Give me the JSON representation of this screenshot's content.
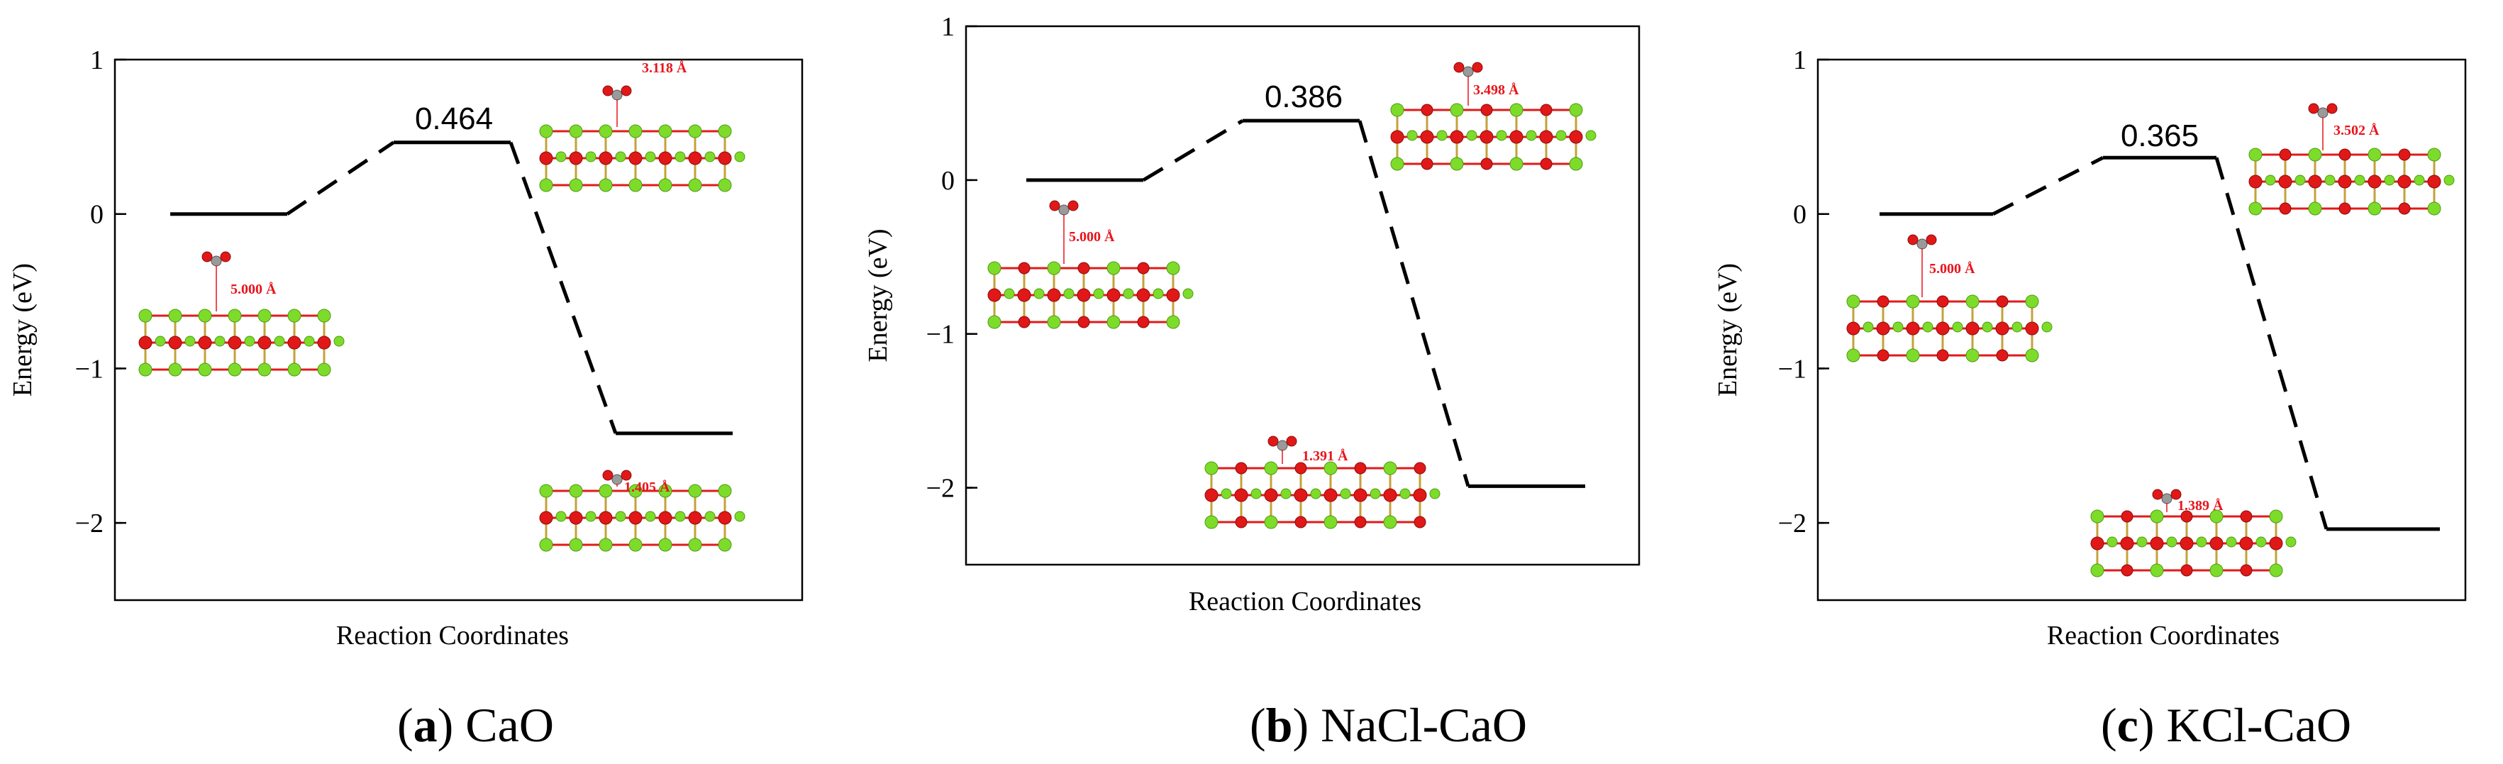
{
  "chart_data": [
    {
      "type": "line",
      "style": "energy-profile",
      "panel_letter": "a",
      "panel_name": "CaO",
      "xlabel": "Reaction Coordinates",
      "ylabel": "Energy (eV)",
      "ylim": [
        -2.5,
        1
      ],
      "yticks": [
        {
          "v": 1,
          "t": "1"
        },
        {
          "v": 0,
          "t": "0"
        },
        {
          "v": -1,
          "t": "−1"
        },
        {
          "v": -2,
          "t": "−2"
        }
      ],
      "levels": [
        0,
        0.464,
        -1.42
      ],
      "barrier_label": "0.464",
      "structures": [
        {
          "label": "5.000 Å",
          "anchor": "initial"
        },
        {
          "label": "3.118 Å",
          "anchor": "transition"
        },
        {
          "label": "1.405 Å",
          "anchor": "final"
        }
      ]
    },
    {
      "type": "line",
      "style": "energy-profile",
      "panel_letter": "b",
      "panel_name": "NaCl-CaO",
      "xlabel": "Reaction Coordinates",
      "ylabel": "Energy (eV)",
      "ylim": [
        -2.5,
        1
      ],
      "yticks": [
        {
          "v": 1,
          "t": "1"
        },
        {
          "v": 0,
          "t": "0"
        },
        {
          "v": -1,
          "t": "−1"
        },
        {
          "v": -2,
          "t": "−2"
        }
      ],
      "levels": [
        0,
        0.386,
        -1.99
      ],
      "barrier_label": "0.386",
      "structures": [
        {
          "label": "5.000 Å",
          "anchor": "initial"
        },
        {
          "label": "3.498 Å",
          "anchor": "transition"
        },
        {
          "label": "1.391 Å",
          "anchor": "final"
        }
      ]
    },
    {
      "type": "line",
      "style": "energy-profile",
      "panel_letter": "c",
      "panel_name": "KCl-CaO",
      "xlabel": "Reaction Coordinates",
      "ylabel": "Energy (eV)",
      "ylim": [
        -2.5,
        1
      ],
      "yticks": [
        {
          "v": 1,
          "t": "1"
        },
        {
          "v": 0,
          "t": "0"
        },
        {
          "v": -1,
          "t": "−1"
        },
        {
          "v": -2,
          "t": "−2"
        }
      ],
      "levels": [
        0,
        0.365,
        -2.04
      ],
      "barrier_label": "0.365",
      "structures": [
        {
          "label": "5.000 Å",
          "anchor": "initial"
        },
        {
          "label": "3.502 Å",
          "anchor": "transition"
        },
        {
          "label": "1.389 Å",
          "anchor": "final"
        }
      ]
    }
  ],
  "colors": {
    "calcium": "#7ddc2a",
    "oxygen": "#e01818",
    "carbon": "#9a9a9a",
    "distance_label": "#e8141c",
    "bond": "#c4a23a"
  }
}
